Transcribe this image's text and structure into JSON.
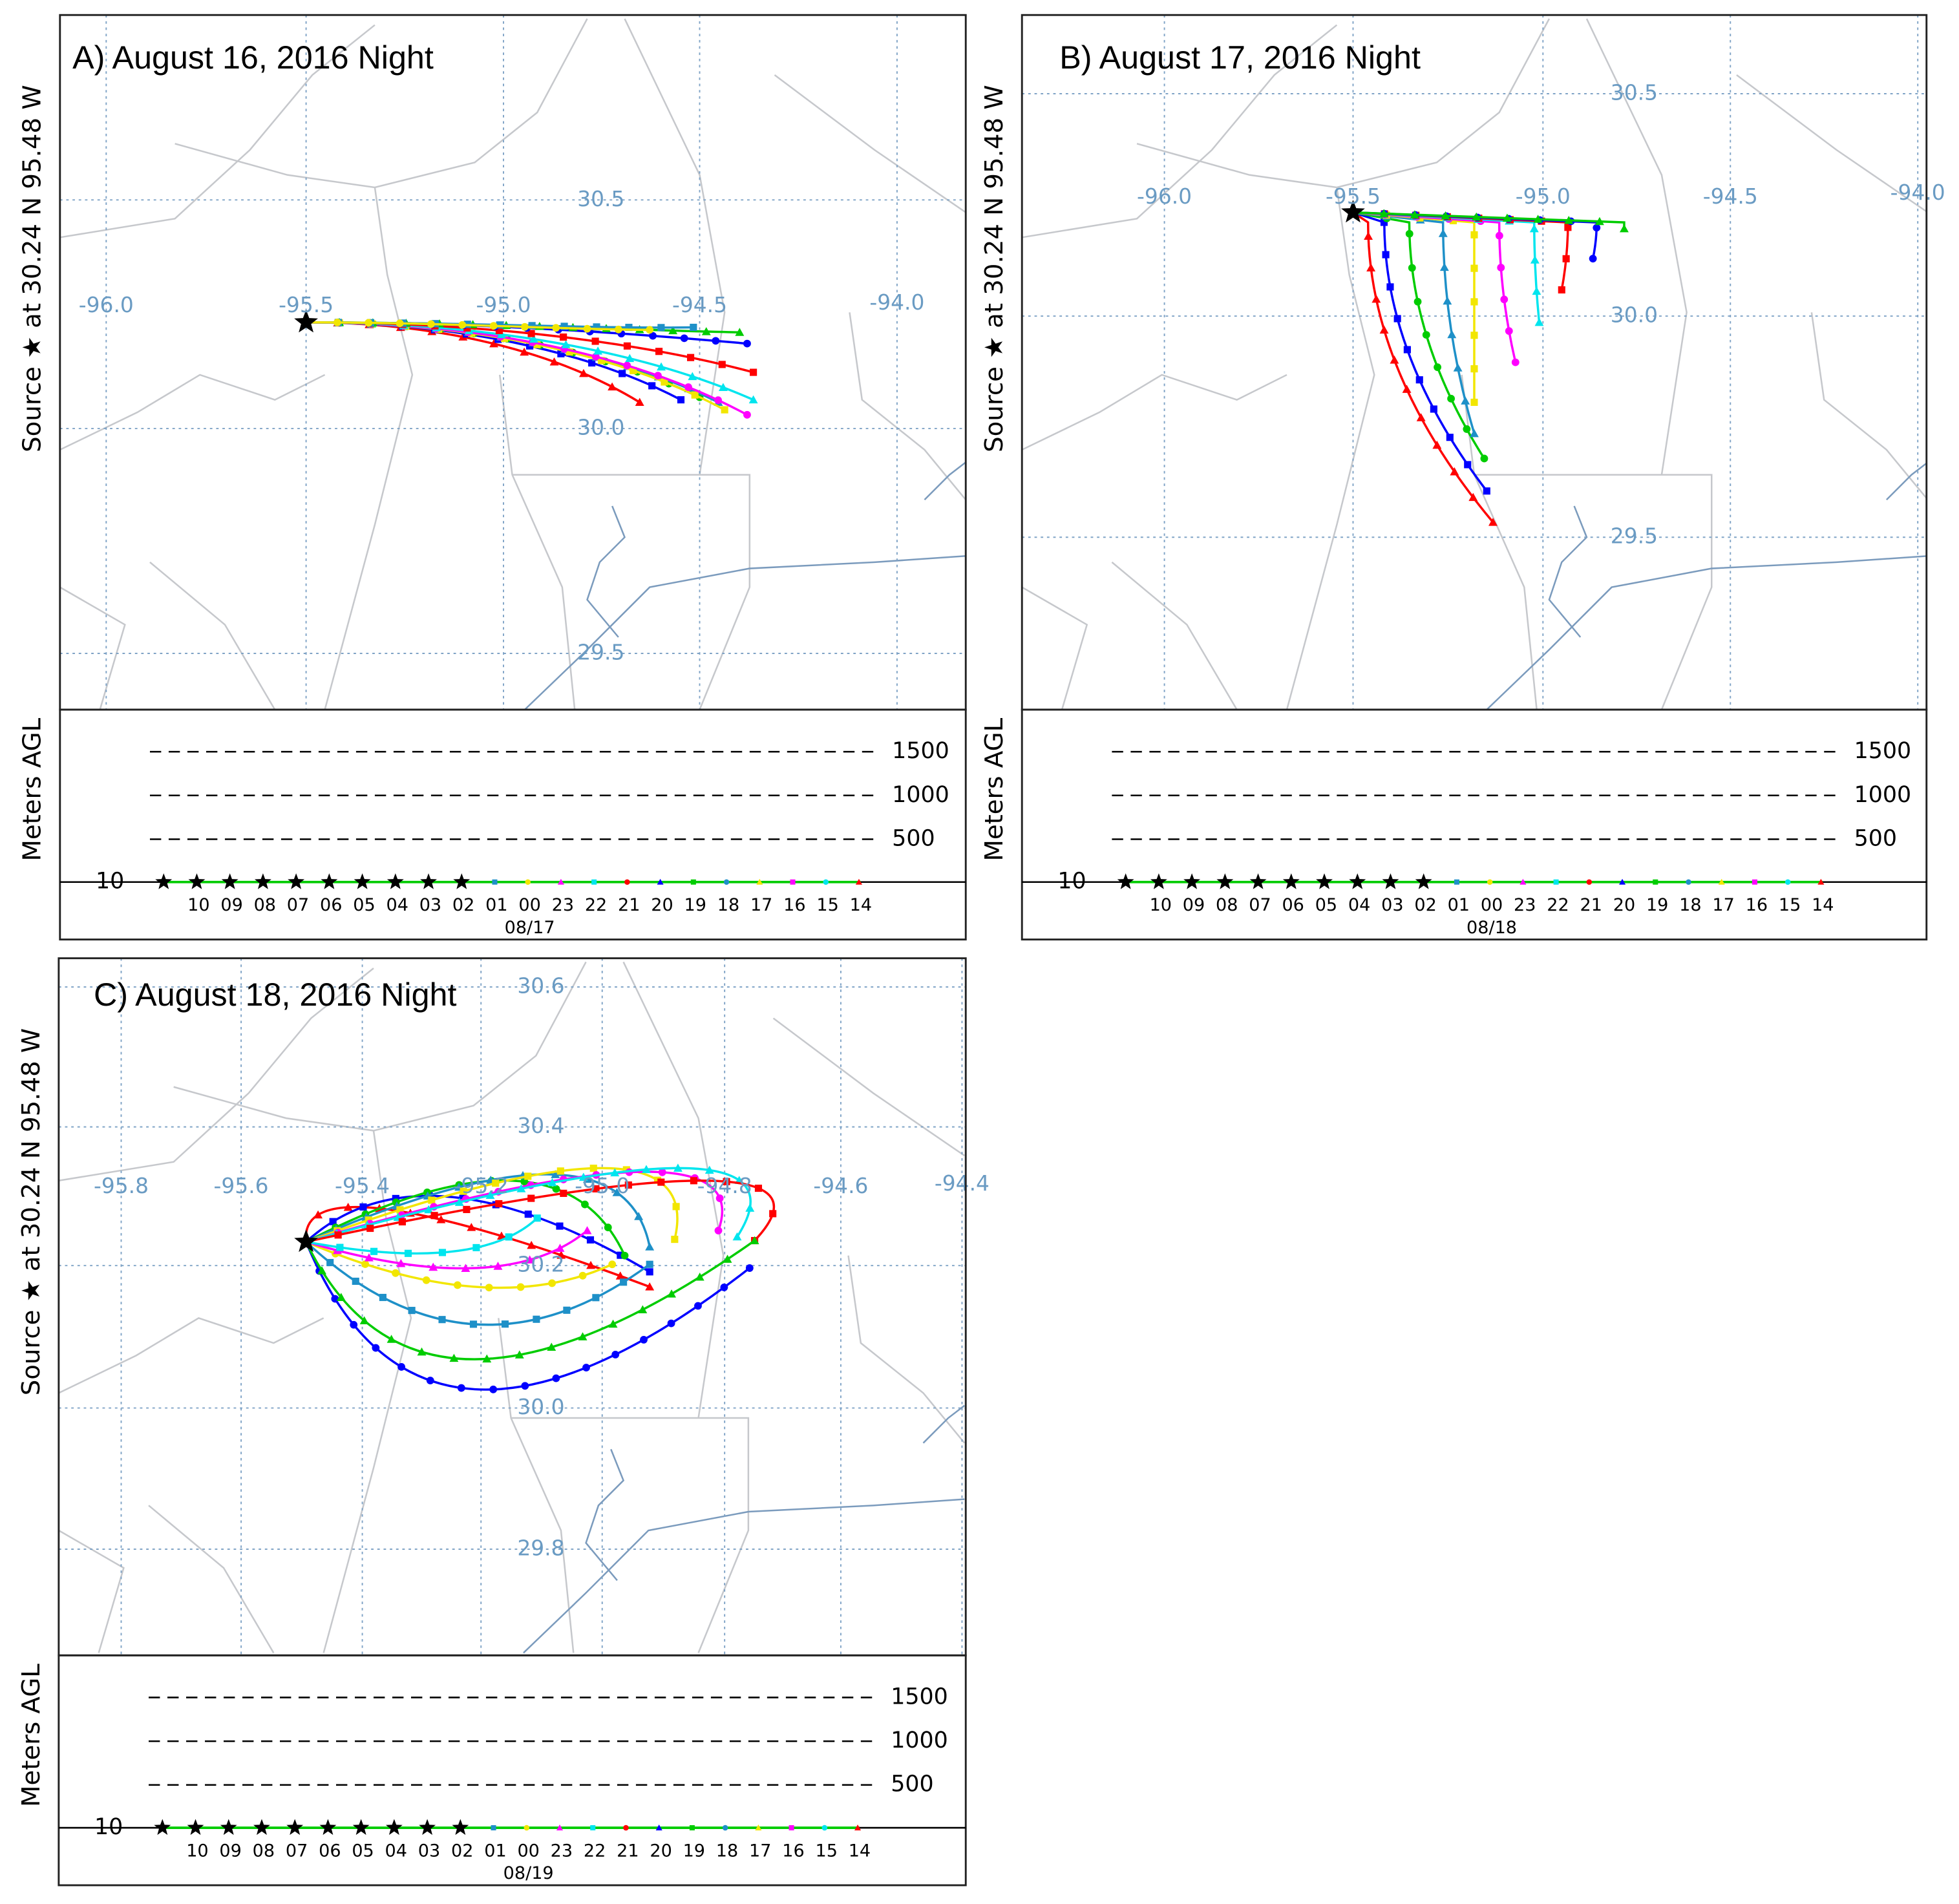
{
  "panels": [
    {
      "title": "A) August 16, 2016 Night",
      "side_label": "Source ★ at 30.24 N 95.48 W",
      "height_label": "Meters AGL",
      "lon_labels": [
        "-96.0",
        "-95.5",
        "-95.0",
        "-94.5",
        "-94.0"
      ],
      "lat_labels": [
        "30.5",
        "30.0",
        "29.5"
      ],
      "height_ticks": [
        1500,
        1000,
        500
      ],
      "height_base": 10,
      "hours": [
        "10",
        "09",
        "08",
        "07",
        "06",
        "05",
        "04",
        "03",
        "02",
        "01",
        "00",
        "23",
        "22",
        "21",
        "20",
        "19",
        "18",
        "17",
        "16",
        "15",
        "14"
      ],
      "date": "08/17"
    },
    {
      "title": "B) August 17, 2016 Night",
      "side_label": "Source ★ at 30.24 N 95.48 W",
      "height_label": "Meters AGL",
      "lon_labels": [
        "-96.0",
        "-95.5",
        "-95.0",
        "-94.5",
        "-94.0"
      ],
      "lat_labels": [
        "30.5",
        "30.0",
        "29.5"
      ],
      "height_ticks": [
        1500,
        1000,
        500
      ],
      "height_base": 10,
      "hours": [
        "10",
        "09",
        "08",
        "07",
        "06",
        "05",
        "04",
        "03",
        "02",
        "01",
        "00",
        "23",
        "22",
        "21",
        "20",
        "19",
        "18",
        "17",
        "16",
        "15",
        "14"
      ],
      "date": "08/18"
    },
    {
      "title": "C) August 18, 2016 Night",
      "side_label": "Source ★ at 30.24 N 95.48 W",
      "height_label": "Meters AGL",
      "lon_labels": [
        "-95.8",
        "-95.6",
        "-95.4",
        "-95.2",
        "-95.0",
        "-94.8",
        "-94.6",
        "-94.4"
      ],
      "lat_labels": [
        "30.6",
        "30.4",
        "30.2",
        "30.0",
        "29.8"
      ],
      "height_ticks": [
        1500,
        1000,
        500
      ],
      "height_base": 10,
      "hours": [
        "10",
        "09",
        "08",
        "07",
        "06",
        "05",
        "04",
        "03",
        "02",
        "01",
        "00",
        "23",
        "22",
        "21",
        "20",
        "19",
        "18",
        "17",
        "16",
        "15",
        "14"
      ],
      "date": "08/19"
    }
  ]
}
